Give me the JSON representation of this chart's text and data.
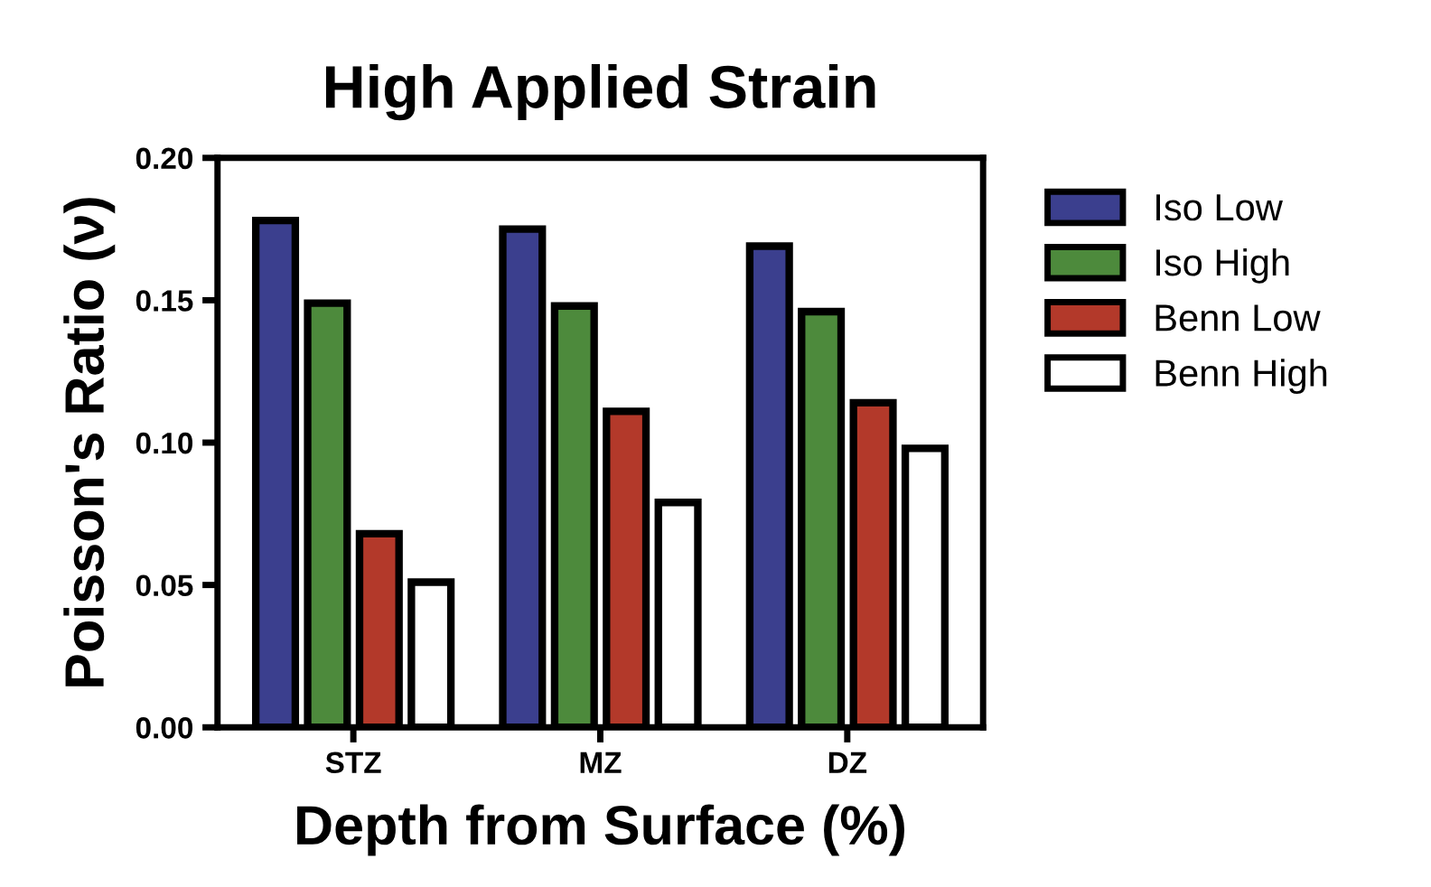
{
  "chart_data": {
    "type": "bar",
    "title": "High Applied Strain",
    "xlabel": "Depth from Surface (%)",
    "ylabel": "Poisson's Ratio (ν)",
    "categories": [
      "STZ",
      "MZ",
      "DZ"
    ],
    "series": [
      {
        "name": "Iso Low",
        "color": "#3b3f8e",
        "values": [
          0.178,
          0.175,
          0.169
        ]
      },
      {
        "name": "Iso High",
        "color": "#4d8a3c",
        "values": [
          0.149,
          0.148,
          0.146
        ]
      },
      {
        "name": "Benn Low",
        "color": "#b3392a",
        "values": [
          0.068,
          0.111,
          0.114
        ]
      },
      {
        "name": "Benn High",
        "color": "#ffffff",
        "values": [
          0.051,
          0.079,
          0.098
        ]
      }
    ],
    "ylim": [
      0,
      0.2
    ],
    "yticks": [
      {
        "value": 0,
        "label": "0.00"
      },
      {
        "value": 0.05,
        "label": "0.05"
      },
      {
        "value": 0.1,
        "label": "0.10"
      },
      {
        "value": 0.15,
        "label": "0.15"
      },
      {
        "value": 0.2,
        "label": "0.20"
      }
    ],
    "grid": false,
    "legend": "right"
  }
}
